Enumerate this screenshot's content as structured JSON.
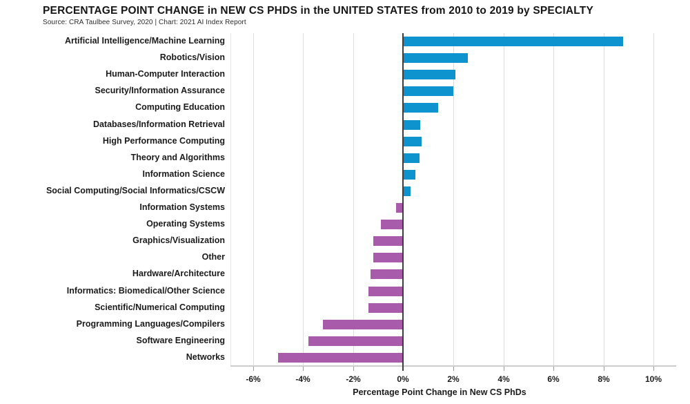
{
  "header": {
    "title": "PERCENTAGE POINT CHANGE in NEW CS PHDS in the UNITED STATES from 2010 to 2019 by SPECIALTY",
    "source": "Source: CRA Taulbee Survey, 2020 | Chart: 2021 AI Index Report"
  },
  "chart_data": {
    "type": "bar",
    "orientation": "horizontal",
    "title": "PERCENTAGE POINT CHANGE in NEW CS PHDS in the UNITED STATES from 2010 to 2019 by SPECIALTY",
    "xlabel": "Percentage Point Change in New CS PhDs",
    "ylabel": "",
    "xlim": [
      -6.9,
      10.9
    ],
    "xticks": [
      -6,
      -4,
      -2,
      0,
      2,
      4,
      6,
      8,
      10
    ],
    "xtick_labels": [
      "-6%",
      "-4%",
      "-2%",
      "0%",
      "2%",
      "4%",
      "6%",
      "8%",
      "10%"
    ],
    "grid": true,
    "legend": "none",
    "categories": [
      "Artificial Intelligence/Machine Learning",
      "Robotics/Vision",
      "Human-Computer Interaction",
      "Security/Information Assurance",
      "Computing Education",
      "Databases/Information Retrieval",
      "High Performance Computing",
      "Theory and Algorithms",
      "Information Science",
      "Social Computing/Social Informatics/CSCW",
      "Information Systems",
      "Operating Systems",
      "Graphics/Visualization",
      "Other",
      "Hardware/Architecture",
      "Informatics: Biomedical/Other Science",
      "Scientific/Numerical Computing",
      "Programming Languages/Compilers",
      "Software Engineering",
      "Networks"
    ],
    "values": [
      8.8,
      2.6,
      2.1,
      2.0,
      1.4,
      0.7,
      0.75,
      0.65,
      0.5,
      0.3,
      -0.3,
      -0.9,
      -1.2,
      -1.2,
      -1.3,
      -1.4,
      -1.4,
      -3.2,
      -3.8,
      -5.0
    ],
    "colors": {
      "positive": "#0e93ce",
      "negative": "#a85aab",
      "gridline": "#dcdcdc",
      "zero_line": "#3d3d3d",
      "text": "#1b1b1b"
    }
  }
}
